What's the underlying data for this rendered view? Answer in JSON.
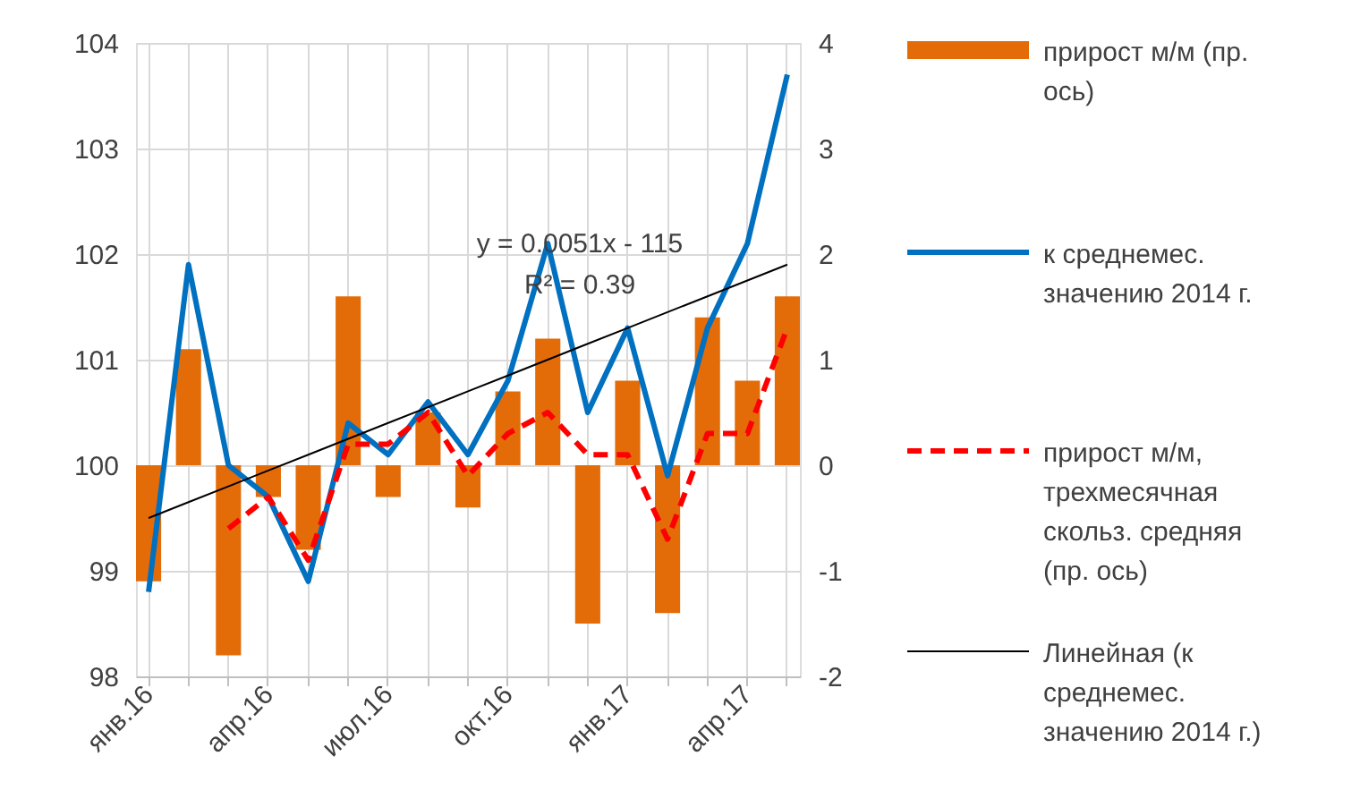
{
  "chart_data": {
    "type": "bar",
    "categories": [
      "янв.16",
      null,
      null,
      "апр.16",
      null,
      null,
      "июл.16",
      null,
      null,
      "окт.16",
      null,
      null,
      "янв.17",
      null,
      null,
      "апр.17",
      null
    ],
    "series": [
      {
        "name": "прирост м/м (пр. ось)",
        "type": "bar",
        "axis": "y2",
        "color": "#e36c09",
        "values": [
          -1.1,
          1.1,
          -1.8,
          -0.3,
          -0.8,
          1.6,
          -0.3,
          0.5,
          -0.4,
          0.7,
          1.2,
          -1.5,
          0.8,
          -1.4,
          1.4,
          0.8,
          1.6
        ]
      },
      {
        "name": "к среднемес. значению 2014 г.",
        "type": "line",
        "color": "#0070c0",
        "values": [
          98.8,
          101.9,
          100.0,
          99.7,
          98.9,
          100.4,
          100.1,
          100.6,
          100.1,
          100.8,
          102.1,
          100.5,
          101.3,
          99.9,
          101.3,
          102.1,
          103.7
        ]
      },
      {
        "name": "прирост м/м, трехмесячная скольз. средняя (пр. ось)",
        "type": "line",
        "axis": "y2",
        "line_style": "dashed",
        "color": "#ff0000",
        "values": [
          null,
          null,
          -0.6,
          -0.3,
          -0.9,
          0.2,
          0.2,
          0.5,
          -0.1,
          0.3,
          0.5,
          0.1,
          0.1,
          -0.7,
          0.3,
          0.3,
          1.3
        ]
      },
      {
        "name": "Линейная  (к среднемес. значению 2014 г.)",
        "type": "line",
        "color": "#000000",
        "values": [
          99.5,
          99.65,
          99.8,
          99.95,
          100.1,
          100.25,
          100.4,
          100.55,
          100.7,
          100.85,
          101.0,
          101.15,
          101.3,
          101.45,
          101.6,
          101.75,
          101.9
        ]
      }
    ],
    "ylim": [
      98,
      104
    ],
    "yticks": [
      98,
      99,
      100,
      101,
      102,
      103,
      104
    ],
    "y2lim": [
      -2,
      4
    ],
    "y2ticks": [
      -2,
      -1,
      0,
      1,
      2,
      3,
      4
    ],
    "annotations": [
      "y = 0.0051x - 115",
      "R² = 0.39"
    ],
    "grid": true,
    "legend": "right"
  }
}
